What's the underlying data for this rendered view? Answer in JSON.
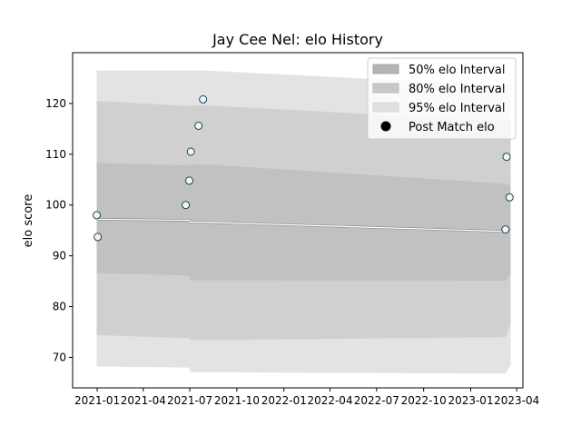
{
  "chart_data": {
    "type": "line",
    "title": "Jay Cee Nel: elo History",
    "xlabel": "",
    "ylabel": "elo score",
    "x_range": [
      "2020-11-14",
      "2023-04-13"
    ],
    "ylim": [
      64,
      130
    ],
    "grid": false,
    "legend_placement": "top-right",
    "x_ticks": [
      "2021-01",
      "2021-04",
      "2021-07",
      "2021-10",
      "2022-01",
      "2022-04",
      "2022-07",
      "2022-10",
      "2023-01",
      "2023-04"
    ],
    "x_tick_dates": [
      "2021-01-01",
      "2021-04-01",
      "2021-07-01",
      "2021-10-01",
      "2022-01-01",
      "2022-04-01",
      "2022-07-01",
      "2022-10-01",
      "2023-01-01",
      "2023-04-01"
    ],
    "y_ticks": [
      70,
      80,
      90,
      100,
      110,
      120
    ],
    "band_dates": [
      "2020-12-31",
      "2021-06-30",
      "2021-07-02",
      "2021-08-01",
      "2023-03-10",
      "2023-03-20"
    ],
    "intervals": [
      {
        "name": "95% elo Interval",
        "color": "#e3e3e3",
        "lower": [
          68.2,
          68.0,
          67.1,
          67.1,
          66.8,
          68.5
        ],
        "upper": [
          126.5,
          126.5,
          126.5,
          126.5,
          123.5,
          124.0
        ]
      },
      {
        "name": "80% elo Interval",
        "color": "#d0d0d0",
        "lower": [
          74.4,
          73.8,
          73.4,
          73.4,
          74.0,
          76.5
        ],
        "upper": [
          120.5,
          119.5,
          119.6,
          119.6,
          116.5,
          117.0
        ]
      },
      {
        "name": "50% elo Interval",
        "color": "#c1c1c1",
        "lower": [
          86.6,
          86.1,
          85.2,
          85.2,
          85.1,
          86.5
        ],
        "upper": [
          108.3,
          107.8,
          108.0,
          108.0,
          104.2,
          103.8
        ]
      }
    ],
    "mean_line": {
      "dates": [
        "2020-12-31",
        "2021-06-30",
        "2021-07-02",
        "2021-08-01",
        "2023-03-10",
        "2023-03-20"
      ],
      "values": [
        97.2,
        97.0,
        96.6,
        96.6,
        94.8,
        95.5
      ]
    },
    "post_match": {
      "name": "Post Match elo",
      "dates": [
        "2020-12-31",
        "2021-01-02",
        "2021-06-23",
        "2021-06-30",
        "2021-07-03",
        "2021-07-18",
        "2021-07-27",
        "2023-03-10",
        "2023-03-12",
        "2023-03-18"
      ],
      "values": [
        98.0,
        93.7,
        100.0,
        104.8,
        110.5,
        115.6,
        120.8,
        95.2,
        109.5,
        101.5
      ]
    }
  },
  "colors": {
    "marker_fill": "#eef6f8",
    "marker_edge": "#1f3f4f",
    "mean_line": "#ffffff",
    "mean_line_shadow": "#808080",
    "axis": "#000000",
    "legend_marker": "#000000"
  }
}
